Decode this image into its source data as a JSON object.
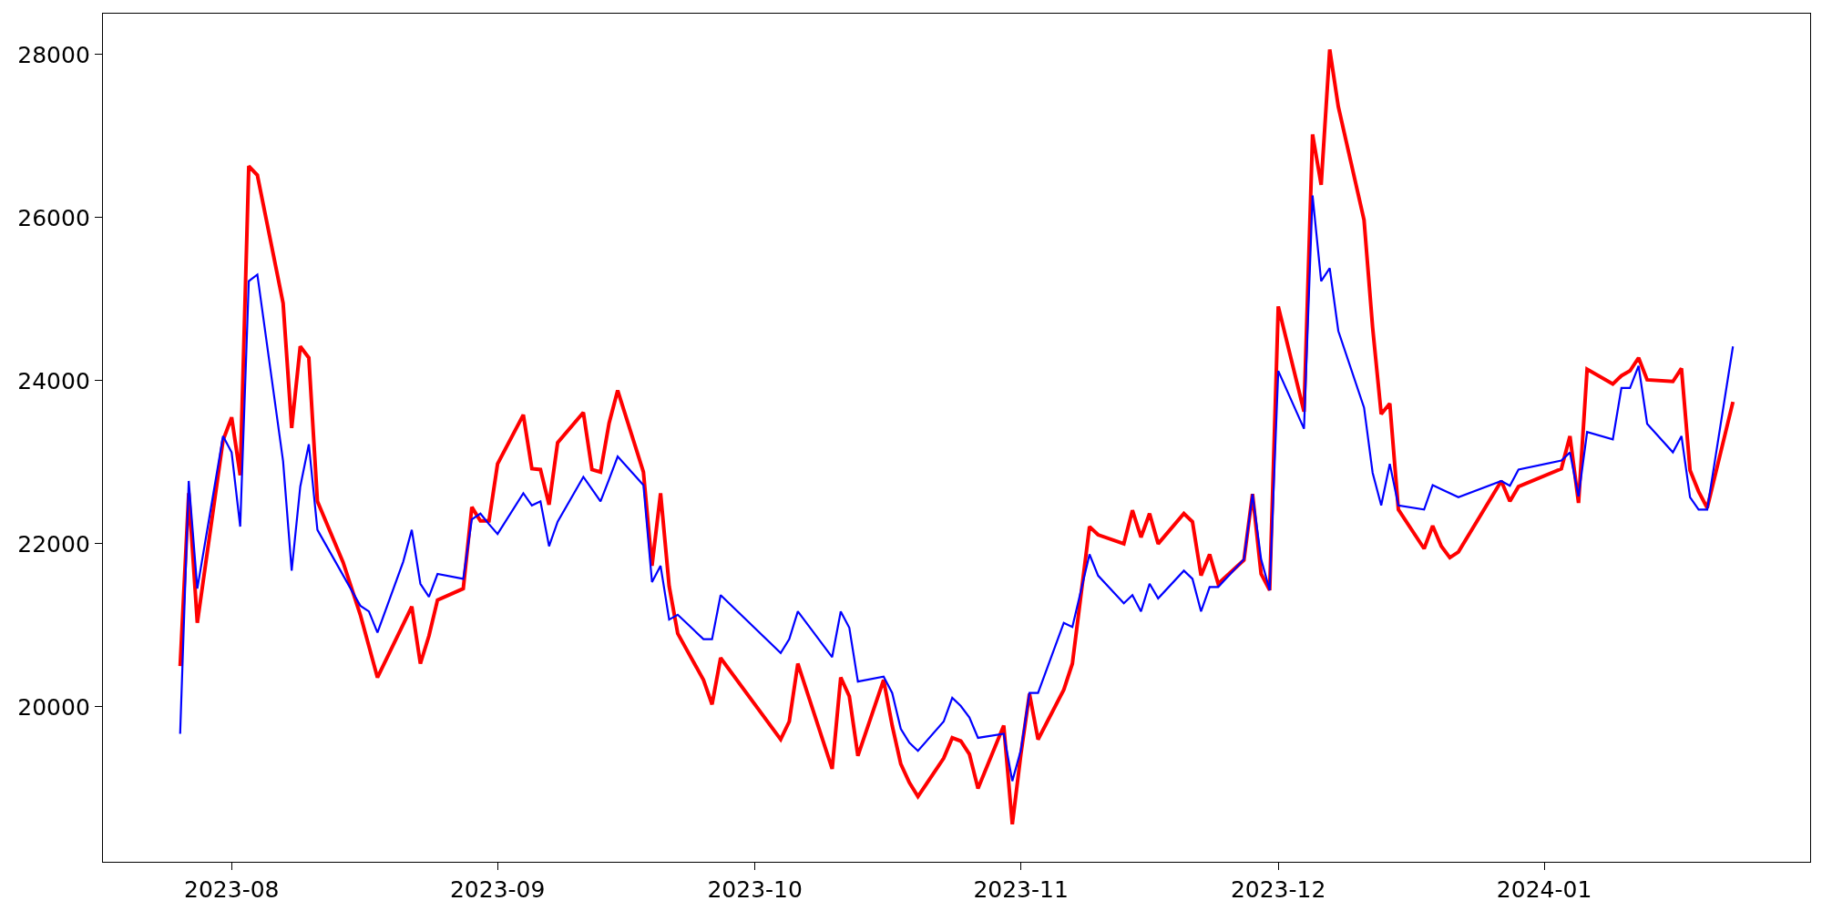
{
  "chart_data": {
    "type": "line",
    "xlim": [
      "2023-07-17",
      "2024-02-01"
    ],
    "ylim": [
      18100,
      28500
    ],
    "xticks": [
      {
        "value": "2023-08-01",
        "label": "2023-08"
      },
      {
        "value": "2023-09-01",
        "label": "2023-09"
      },
      {
        "value": "2023-10-01",
        "label": "2023-10"
      },
      {
        "value": "2023-11-01",
        "label": "2023-11"
      },
      {
        "value": "2023-12-01",
        "label": "2023-12"
      },
      {
        "value": "2024-01-01",
        "label": "2024-01"
      }
    ],
    "yticks": [
      20000,
      22000,
      24000,
      26000,
      28000
    ],
    "grid": false,
    "marker": "none",
    "line_style": "solid",
    "series": [
      {
        "color": "#ff0000",
        "x": [
          "2023-07-26",
          "2023-07-27",
          "2023-07-28",
          "2023-07-31",
          "2023-08-01",
          "2023-08-02",
          "2023-08-03",
          "2023-08-04",
          "2023-08-07",
          "2023-08-08",
          "2023-08-09",
          "2023-08-10",
          "2023-08-11",
          "2023-08-14",
          "2023-08-16",
          "2023-08-18",
          "2023-08-22",
          "2023-08-23",
          "2023-08-24",
          "2023-08-25",
          "2023-08-28",
          "2023-08-29",
          "2023-08-30",
          "2023-08-31",
          "2023-09-01",
          "2023-09-04",
          "2023-09-05",
          "2023-09-06",
          "2023-09-07",
          "2023-09-08",
          "2023-09-11",
          "2023-09-12",
          "2023-09-13",
          "2023-09-14",
          "2023-09-15",
          "2023-09-18",
          "2023-09-19",
          "2023-09-20",
          "2023-09-21",
          "2023-09-22",
          "2023-09-25",
          "2023-09-26",
          "2023-09-27",
          "2023-10-04",
          "2023-10-05",
          "2023-10-06",
          "2023-10-10",
          "2023-10-11",
          "2023-10-12",
          "2023-10-13",
          "2023-10-16",
          "2023-10-17",
          "2023-10-18",
          "2023-10-19",
          "2023-10-20",
          "2023-10-23",
          "2023-10-24",
          "2023-10-25",
          "2023-10-26",
          "2023-10-27",
          "2023-10-30",
          "2023-10-31",
          "2023-11-01",
          "2023-11-02",
          "2023-11-03",
          "2023-11-06",
          "2023-11-07",
          "2023-11-09",
          "2023-11-10",
          "2023-11-13",
          "2023-11-14",
          "2023-11-15",
          "2023-11-16",
          "2023-11-17",
          "2023-11-20",
          "2023-11-21",
          "2023-11-22",
          "2023-11-23",
          "2023-11-24",
          "2023-11-27",
          "2023-11-28",
          "2023-11-29",
          "2023-11-30",
          "2023-12-01",
          "2023-12-04",
          "2023-12-05",
          "2023-12-06",
          "2023-12-07",
          "2023-12-08",
          "2023-12-11",
          "2023-12-12",
          "2023-12-13",
          "2023-12-14",
          "2023-12-15",
          "2023-12-18",
          "2023-12-19",
          "2023-12-20",
          "2023-12-21",
          "2023-12-22",
          "2023-12-27",
          "2023-12-28",
          "2023-12-29",
          "2024-01-03",
          "2024-01-04",
          "2024-01-05",
          "2024-01-06",
          "2024-01-09",
          "2024-01-10",
          "2024-01-11",
          "2024-01-12",
          "2024-01-13",
          "2024-01-16",
          "2024-01-17",
          "2024-01-18",
          "2024-01-19",
          "2024-01-20",
          "2024-01-23"
        ],
        "values": [
          20500,
          22620,
          21030,
          23270,
          23550,
          22840,
          26630,
          26520,
          24950,
          23420,
          24420,
          24280,
          22520,
          21770,
          21130,
          20360,
          21230,
          20530,
          20870,
          21310,
          21450,
          22450,
          22280,
          22280,
          22980,
          23580,
          22920,
          22910,
          22480,
          23240,
          23610,
          22910,
          22880,
          23480,
          23880,
          22880,
          21730,
          22620,
          21480,
          20900,
          20330,
          20030,
          20600,
          19600,
          19820,
          20530,
          19240,
          20360,
          20130,
          19400,
          20330,
          19770,
          19300,
          19070,
          18900,
          19370,
          19620,
          19580,
          19420,
          19000,
          19770,
          18560,
          19420,
          20160,
          19600,
          20210,
          20530,
          22210,
          22110,
          22000,
          22410,
          22080,
          22370,
          22000,
          22370,
          22270,
          21610,
          21870,
          21510,
          21800,
          22610,
          21630,
          21430,
          24910,
          23620,
          27020,
          26400,
          28060,
          27360,
          25970,
          24650,
          23590,
          23720,
          22420,
          21940,
          22220,
          21970,
          21830,
          21900,
          22770,
          22520,
          22700,
          22920,
          23320,
          22500,
          24140,
          23960,
          24060,
          24120,
          24280,
          24010,
          23990,
          24150,
          22900,
          22640,
          22440,
          23740
        ]
      },
      {
        "color": "#0000ff",
        "x": [
          "2023-07-26",
          "2023-07-27",
          "2023-07-28",
          "2023-07-31",
          "2023-08-01",
          "2023-08-02",
          "2023-08-03",
          "2023-08-04",
          "2023-08-07",
          "2023-08-08",
          "2023-08-09",
          "2023-08-10",
          "2023-08-11",
          "2023-08-16",
          "2023-08-17",
          "2023-08-18",
          "2023-08-21",
          "2023-08-22",
          "2023-08-23",
          "2023-08-24",
          "2023-08-25",
          "2023-08-28",
          "2023-08-29",
          "2023-08-30",
          "2023-08-31",
          "2023-09-01",
          "2023-09-04",
          "2023-09-05",
          "2023-09-06",
          "2023-09-07",
          "2023-09-08",
          "2023-09-11",
          "2023-09-12",
          "2023-09-13",
          "2023-09-14",
          "2023-09-15",
          "2023-09-18",
          "2023-09-19",
          "2023-09-20",
          "2023-09-21",
          "2023-09-22",
          "2023-09-25",
          "2023-09-26",
          "2023-09-27",
          "2023-10-04",
          "2023-10-05",
          "2023-10-06",
          "2023-10-10",
          "2023-10-11",
          "2023-10-12",
          "2023-10-13",
          "2023-10-16",
          "2023-10-17",
          "2023-10-18",
          "2023-10-19",
          "2023-10-20",
          "2023-10-23",
          "2023-10-24",
          "2023-10-25",
          "2023-10-26",
          "2023-10-27",
          "2023-10-30",
          "2023-10-31",
          "2023-11-01",
          "2023-11-02",
          "2023-11-03",
          "2023-11-06",
          "2023-11-07",
          "2023-11-09",
          "2023-11-10",
          "2023-11-13",
          "2023-11-14",
          "2023-11-15",
          "2023-11-16",
          "2023-11-17",
          "2023-11-20",
          "2023-11-21",
          "2023-11-22",
          "2023-11-23",
          "2023-11-24",
          "2023-11-27",
          "2023-11-28",
          "2023-11-29",
          "2023-11-30",
          "2023-12-01",
          "2023-12-04",
          "2023-12-05",
          "2023-12-06",
          "2023-12-07",
          "2023-12-08",
          "2023-12-11",
          "2023-12-12",
          "2023-12-13",
          "2023-12-14",
          "2023-12-15",
          "2023-12-18",
          "2023-12-19",
          "2023-12-20",
          "2023-12-22",
          "2023-12-27",
          "2023-12-28",
          "2023-12-29",
          "2024-01-03",
          "2024-01-04",
          "2024-01-05",
          "2024-01-06",
          "2024-01-09",
          "2024-01-10",
          "2024-01-11",
          "2024-01-12",
          "2024-01-13",
          "2024-01-16",
          "2024-01-17",
          "2024-01-18",
          "2024-01-19",
          "2024-01-20",
          "2024-01-23"
        ],
        "values": [
          19670,
          22770,
          21450,
          23320,
          23120,
          22210,
          25220,
          25300,
          23010,
          21670,
          22700,
          23220,
          22170,
          21240,
          21170,
          20910,
          21780,
          22170,
          21510,
          21350,
          21630,
          21570,
          22300,
          22370,
          22240,
          22120,
          22620,
          22470,
          22520,
          21970,
          22270,
          22820,
          22670,
          22520,
          22790,
          23070,
          22720,
          21530,
          21730,
          21070,
          21130,
          20830,
          20830,
          21370,
          20660,
          20830,
          21170,
          20610,
          21170,
          20970,
          20310,
          20370,
          20170,
          19730,
          19560,
          19460,
          19820,
          20110,
          20010,
          19870,
          19620,
          19670,
          19090,
          19470,
          20170,
          20170,
          21030,
          20980,
          21870,
          21610,
          21270,
          21370,
          21170,
          21510,
          21330,
          21670,
          21570,
          21170,
          21470,
          21470,
          21810,
          22610,
          21810,
          21430,
          24120,
          23410,
          26270,
          25220,
          25380,
          24610,
          23670,
          22870,
          22470,
          22980,
          22470,
          22420,
          22720,
          22670,
          22570,
          22770,
          22710,
          22910,
          23020,
          23120,
          22580,
          23370,
          23280,
          23910,
          23910,
          24180,
          23470,
          23120,
          23320,
          22570,
          22420,
          22420,
          24420
        ]
      }
    ]
  }
}
